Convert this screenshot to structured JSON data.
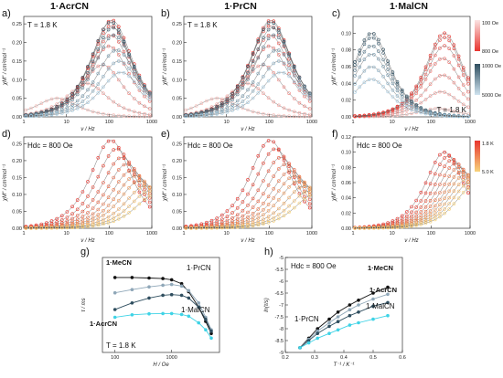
{
  "figure": {
    "panel_letters": [
      "a)",
      "b)",
      "c)",
      "d)",
      "e)",
      "f)",
      "g)",
      "h)"
    ],
    "column_titles": [
      "1·AcrCN",
      "1·PrCN",
      "1·MalCN"
    ]
  },
  "chart_data": [
    {
      "id": "a",
      "type": "scatter",
      "label": "a)",
      "title": "1·AcrCN",
      "annotation": "T = 1.8 K",
      "xlabel": "ν / Hz",
      "ylabel": "χM″ / cm³mol⁻¹",
      "xscale": "log",
      "xlim": [
        1,
        1000
      ],
      "xticks": [
        "1",
        "10",
        "100",
        "1000"
      ],
      "ylim": [
        0,
        0.27
      ],
      "yticks": [
        "0.00",
        "0.05",
        "0.10",
        "0.15",
        "0.20",
        "0.25"
      ],
      "colors": {
        "low_field": "#e8352f",
        "high_field": "#3f6072",
        "mid": "#9fc3d9"
      },
      "series": [
        {
          "field": 100,
          "peak_nu": 6,
          "peak": 0.05
        },
        {
          "field": 200,
          "peak_nu": 30,
          "peak": 0.09
        },
        {
          "field": 300,
          "peak_nu": 70,
          "peak": 0.14
        },
        {
          "field": 400,
          "peak_nu": 100,
          "peak": 0.19
        },
        {
          "field": 500,
          "peak_nu": 110,
          "peak": 0.22
        },
        {
          "field": 600,
          "peak_nu": 110,
          "peak": 0.245
        },
        {
          "field": 800,
          "peak_nu": 115,
          "peak": 0.26
        },
        {
          "field": 1000,
          "peak_nu": 110,
          "peak": 0.255
        },
        {
          "field": 1500,
          "peak_nu": 120,
          "peak": 0.24
        },
        {
          "field": 2000,
          "peak_nu": 130,
          "peak": 0.22
        },
        {
          "field": 3000,
          "peak_nu": 150,
          "peak": 0.18
        },
        {
          "field": 4000,
          "peak_nu": 170,
          "peak": 0.15
        },
        {
          "field": 5000,
          "peak_nu": 190,
          "peak": 0.12
        }
      ]
    },
    {
      "id": "b",
      "type": "scatter",
      "label": "b)",
      "title": "1·PrCN",
      "annotation": "T = 1.8 K",
      "xlabel": "ν / Hz",
      "ylabel": "χM″ / cm³mol⁻¹",
      "xscale": "log",
      "xlim": [
        1,
        1000
      ],
      "xticks": [
        "1",
        "10",
        "100",
        "1000"
      ],
      "ylim": [
        0,
        0.27
      ],
      "yticks": [
        "0.00",
        "0.05",
        "0.10",
        "0.15",
        "0.20",
        "0.25"
      ],
      "series": [
        {
          "field": 100,
          "peak_nu": 6,
          "peak": 0.05
        },
        {
          "field": 200,
          "peak_nu": 30,
          "peak": 0.09
        },
        {
          "field": 300,
          "peak_nu": 70,
          "peak": 0.14
        },
        {
          "field": 400,
          "peak_nu": 100,
          "peak": 0.19
        },
        {
          "field": 500,
          "peak_nu": 105,
          "peak": 0.22
        },
        {
          "field": 600,
          "peak_nu": 105,
          "peak": 0.245
        },
        {
          "field": 800,
          "peak_nu": 110,
          "peak": 0.26
        },
        {
          "field": 1000,
          "peak_nu": 110,
          "peak": 0.255
        },
        {
          "field": 1500,
          "peak_nu": 120,
          "peak": 0.24
        },
        {
          "field": 2000,
          "peak_nu": 130,
          "peak": 0.22
        },
        {
          "field": 3000,
          "peak_nu": 150,
          "peak": 0.18
        },
        {
          "field": 4000,
          "peak_nu": 170,
          "peak": 0.15
        },
        {
          "field": 5000,
          "peak_nu": 190,
          "peak": 0.12
        }
      ]
    },
    {
      "id": "c",
      "type": "scatter",
      "label": "c)",
      "title": "1·MalCN",
      "annotation": "T = 1.8 K",
      "xlabel": "ν / Hz",
      "ylabel": "χM″ / cm³mol⁻¹",
      "xscale": "log",
      "xlim": [
        1,
        1000
      ],
      "xticks": [
        "1",
        "10",
        "100",
        "1000"
      ],
      "ylim": [
        0,
        0.12
      ],
      "yticks": [
        "0.00",
        "0.02",
        "0.04",
        "0.06",
        "0.08",
        "0.10"
      ],
      "legend": {
        "placement": "right",
        "top_label": "100 Oe",
        "mid_label_1": "800 Oe",
        "mid_label_2": "1000 Oe",
        "bottom_label": "5000 Oe",
        "gradient_1": [
          "#fbeaea",
          "#e8352f"
        ],
        "gradient_2": [
          "#3f6072",
          "#cfe3ef"
        ]
      },
      "series": [
        {
          "field": 100,
          "peak_nu": 150,
          "peak": 0.01
        },
        {
          "field": 200,
          "peak_nu": 180,
          "peak": 0.03
        },
        {
          "field": 300,
          "peak_nu": 200,
          "peak": 0.05
        },
        {
          "field": 400,
          "peak_nu": 200,
          "peak": 0.07
        },
        {
          "field": 500,
          "peak_nu": 220,
          "peak": 0.085
        },
        {
          "field": 600,
          "peak_nu": 220,
          "peak": 0.095
        },
        {
          "field": 800,
          "peak_nu": 220,
          "peak": 0.1
        },
        {
          "field": 1000,
          "peak_nu": 3,
          "peak": 0.1
        },
        {
          "field": 1500,
          "peak_nu": 3,
          "peak": 0.095
        },
        {
          "field": 2000,
          "peak_nu": 3,
          "peak": 0.085
        },
        {
          "field": 3000,
          "peak_nu": 3,
          "peak": 0.075
        },
        {
          "field": 4000,
          "peak_nu": 3,
          "peak": 0.06
        },
        {
          "field": 5000,
          "peak_nu": 3,
          "peak": 0.045
        }
      ]
    },
    {
      "id": "d",
      "type": "scatter",
      "label": "d)",
      "annotation": "Hdc = 800 Oe",
      "xlabel": "ν / Hz",
      "ylabel": "χM″ / cm³mol⁻¹",
      "xscale": "log",
      "xlim": [
        1,
        1000
      ],
      "xticks": [
        "1",
        "10",
        "100",
        "1000"
      ],
      "ylim": [
        0,
        0.27
      ],
      "yticks": [
        "0.00",
        "0.05",
        "0.10",
        "0.15",
        "0.20",
        "0.25"
      ],
      "series": [
        {
          "T": 1.8,
          "peak_nu": 110,
          "peak": 0.26
        },
        {
          "T": 2.0,
          "peak_nu": 150,
          "peak": 0.235
        },
        {
          "T": 2.2,
          "peak_nu": 200,
          "peak": 0.21
        },
        {
          "T": 2.4,
          "peak_nu": 260,
          "peak": 0.19
        },
        {
          "T": 2.6,
          "peak_nu": 330,
          "peak": 0.17
        },
        {
          "T": 2.8,
          "peak_nu": 420,
          "peak": 0.155
        },
        {
          "T": 3.0,
          "peak_nu": 520,
          "peak": 0.14
        },
        {
          "T": 3.5,
          "peak_nu": 700,
          "peak": 0.125
        },
        {
          "T": 4.0,
          "peak_nu": 900,
          "peak": 0.11
        },
        {
          "T": 5.0,
          "peak_nu": 1200,
          "peak": 0.1
        }
      ]
    },
    {
      "id": "e",
      "type": "scatter",
      "label": "e)",
      "annotation": "Hdc = 800 Oe",
      "xlabel": "ν / Hz",
      "ylabel": "χM″ / cm³mol⁻¹",
      "xscale": "log",
      "xlim": [
        1,
        1000
      ],
      "xticks": [
        "1",
        "10",
        "100",
        "1000"
      ],
      "ylim": [
        0,
        0.27
      ],
      "yticks": [
        "0.00",
        "0.05",
        "0.10",
        "0.15",
        "0.20",
        "0.25"
      ],
      "series": [
        {
          "T": 1.8,
          "peak_nu": 105,
          "peak": 0.26
        },
        {
          "T": 2.0,
          "peak_nu": 140,
          "peak": 0.235
        },
        {
          "T": 2.2,
          "peak_nu": 190,
          "peak": 0.21
        },
        {
          "T": 2.4,
          "peak_nu": 250,
          "peak": 0.19
        },
        {
          "T": 2.6,
          "peak_nu": 320,
          "peak": 0.17
        },
        {
          "T": 2.8,
          "peak_nu": 400,
          "peak": 0.155
        },
        {
          "T": 3.0,
          "peak_nu": 500,
          "peak": 0.14
        },
        {
          "T": 3.5,
          "peak_nu": 680,
          "peak": 0.125
        },
        {
          "T": 4.0,
          "peak_nu": 880,
          "peak": 0.11
        },
        {
          "T": 5.0,
          "peak_nu": 1150,
          "peak": 0.1
        }
      ]
    },
    {
      "id": "f",
      "type": "scatter",
      "label": "f)",
      "annotation": "Hdc = 800 Oe",
      "xlabel": "ν / Hz",
      "ylabel": "χM″ / cm³mol⁻¹",
      "xscale": "log",
      "xlim": [
        1,
        1000
      ],
      "xticks": [
        "1",
        "10",
        "100",
        "1000"
      ],
      "ylim": [
        0,
        0.12
      ],
      "yticks": [
        "0.00",
        "0.02",
        "0.04",
        "0.06",
        "0.08",
        "0.10",
        "0.12"
      ],
      "legend": {
        "placement": "right",
        "top_label": "1.8 K",
        "bottom_label": "5.0 K",
        "gradient": [
          "#e8352f",
          "#f5c96b"
        ]
      },
      "series": [
        {
          "T": 1.8,
          "peak_nu": 220,
          "peak": 0.1
        },
        {
          "T": 2.0,
          "peak_nu": 280,
          "peak": 0.095
        },
        {
          "T": 2.2,
          "peak_nu": 350,
          "peak": 0.09
        },
        {
          "T": 2.4,
          "peak_nu": 430,
          "peak": 0.085
        },
        {
          "T": 2.6,
          "peak_nu": 520,
          "peak": 0.08
        },
        {
          "T": 2.8,
          "peak_nu": 620,
          "peak": 0.075
        },
        {
          "T": 3.0,
          "peak_nu": 720,
          "peak": 0.07
        },
        {
          "T": 3.5,
          "peak_nu": 850,
          "peak": 0.065
        },
        {
          "T": 4.0,
          "peak_nu": 1000,
          "peak": 0.06
        },
        {
          "T": 5.0,
          "peak_nu": 1200,
          "peak": 0.055
        }
      ]
    },
    {
      "id": "g",
      "type": "line",
      "label": "g)",
      "annotation": "T = 1.8 K",
      "xlabel": "H / Oe",
      "ylabel": "τ / ms",
      "xscale": "log",
      "xlim": [
        60,
        7000
      ],
      "xticks": [
        "100",
        "1000"
      ],
      "yscale": "log",
      "ylim": [
        0.1,
        10
      ],
      "series": [
        {
          "name": "1·MeCN",
          "color": "#111111",
          "x": [
            100,
            200,
            400,
            700,
            1000,
            1500,
            2000,
            3000,
            4000,
            5000
          ],
          "y": [
            3.8,
            3.8,
            3.7,
            3.6,
            3.4,
            2.8,
            1.9,
            0.9,
            0.45,
            0.25
          ]
        },
        {
          "name": "1·PrCN",
          "color": "#8fa7b8",
          "x": [
            100,
            200,
            400,
            700,
            1000,
            1500,
            2000,
            3000,
            4000,
            5000
          ],
          "y": [
            1.8,
            2.1,
            2.4,
            2.6,
            2.7,
            2.5,
            2.0,
            1.1,
            0.55,
            0.3
          ]
        },
        {
          "name": "1·AcrCN",
          "color": "#2f4e5f",
          "x": [
            100,
            200,
            400,
            700,
            1000,
            1500,
            2000,
            3000,
            4000,
            5000
          ],
          "y": [
            0.8,
            1.1,
            1.4,
            1.6,
            1.65,
            1.6,
            1.4,
            0.9,
            0.5,
            0.28
          ]
        },
        {
          "name": "1·MalCN",
          "color": "#3fd3e6",
          "x": [
            100,
            200,
            400,
            700,
            1000,
            1500,
            2000,
            3000,
            4000,
            5000
          ],
          "y": [
            0.55,
            0.62,
            0.65,
            0.66,
            0.66,
            0.63,
            0.58,
            0.42,
            0.3,
            0.2
          ]
        }
      ]
    },
    {
      "id": "h",
      "type": "line",
      "label": "h)",
      "annotation": "Hdc = 800 Oe",
      "xlabel": "T⁻¹ / K⁻¹",
      "ylabel": "ln(τ/s)",
      "xlim": [
        0.2,
        0.6
      ],
      "xticks": [
        "0.2",
        "0.3",
        "0.4",
        "0.5",
        "0.6"
      ],
      "ylim": [
        -9,
        -5
      ],
      "yticks": [
        "-9",
        "-8.5",
        "-8",
        "-7.5",
        "-7",
        "-6.5",
        "-6",
        "-5.5",
        "-5"
      ],
      "series": [
        {
          "name": "1·MeCN",
          "color": "#111111",
          "x": [
            0.25,
            0.28,
            0.31,
            0.35,
            0.38,
            0.42,
            0.45,
            0.5,
            0.55
          ],
          "y": [
            -8.8,
            -8.4,
            -8.0,
            -7.6,
            -7.3,
            -7.0,
            -6.8,
            -6.5,
            -6.25
          ]
        },
        {
          "name": "1·PrCN",
          "color": "#8fa7b8",
          "x": [
            0.25,
            0.28,
            0.31,
            0.35,
            0.38,
            0.42,
            0.45,
            0.5,
            0.55
          ],
          "y": [
            -8.8,
            -8.45,
            -8.1,
            -7.75,
            -7.5,
            -7.2,
            -7.0,
            -6.75,
            -6.55
          ]
        },
        {
          "name": "1·AcrCN",
          "color": "#2f4e5f",
          "x": [
            0.25,
            0.28,
            0.31,
            0.35,
            0.38,
            0.42,
            0.45,
            0.5,
            0.55
          ],
          "y": [
            -8.8,
            -8.5,
            -8.2,
            -7.9,
            -7.7,
            -7.45,
            -7.3,
            -7.05,
            -6.9
          ]
        },
        {
          "name": "1·MalCN",
          "color": "#3fd3e6",
          "x": [
            0.25,
            0.28,
            0.31,
            0.35,
            0.38,
            0.42,
            0.45,
            0.5,
            0.55
          ],
          "y": [
            -8.8,
            -8.6,
            -8.4,
            -8.2,
            -8.05,
            -7.85,
            -7.75,
            -7.6,
            -7.45
          ]
        }
      ]
    }
  ]
}
